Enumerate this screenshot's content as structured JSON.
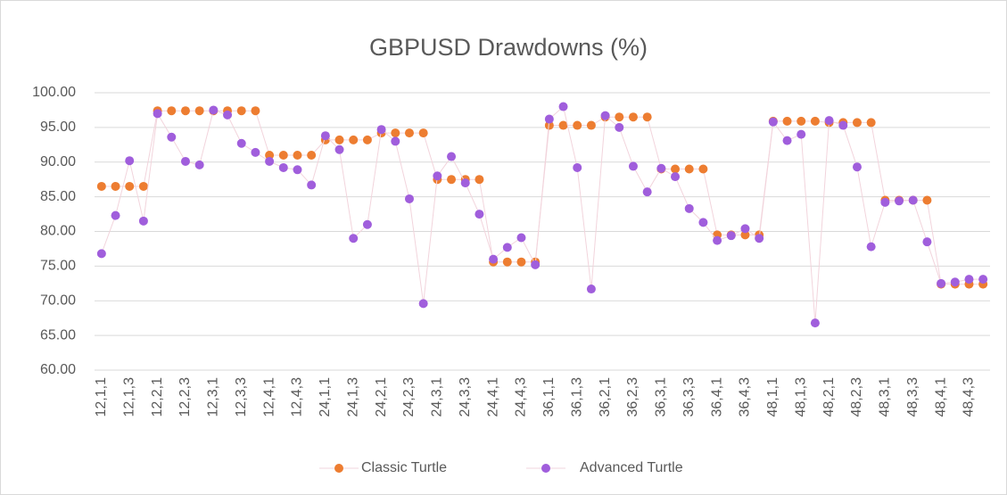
{
  "chart_data": {
    "type": "scatter",
    "title": "GBPUSD Drawdowns (%)",
    "categories": [
      "12,1,1",
      null,
      "12,1,3",
      null,
      "12,2,1",
      null,
      "12,2,3",
      null,
      "12,3,1",
      null,
      "12,3,3",
      null,
      "12,4,1",
      null,
      "12,4,3",
      null,
      "24,1,1",
      null,
      "24,1,3",
      null,
      "24,2,1",
      null,
      "24,2,3",
      null,
      "24,3,1",
      null,
      "24,3,3",
      null,
      "24,4,1",
      null,
      "24,4,3",
      null,
      "36,1,1",
      null,
      "36,1,3",
      null,
      "36,2,1",
      null,
      "36,2,3",
      null,
      "36,3,1",
      null,
      "36,3,3",
      null,
      "36,4,1",
      null,
      "36,4,3",
      null,
      "48,1,1",
      null,
      "48,1,3",
      null,
      "48,2,1",
      null,
      "48,2,3",
      null,
      "48,3,1",
      null,
      "48,3,3",
      null,
      "48,4,1",
      null,
      "48,4,3",
      null
    ],
    "series": [
      {
        "name": "Classic Turtle",
        "color": "#ED7D31",
        "values": [
          86.5,
          86.5,
          86.5,
          86.5,
          97.4,
          97.4,
          97.4,
          97.4,
          97.4,
          97.4,
          97.4,
          97.4,
          91.0,
          91.0,
          91.0,
          91.0,
          93.2,
          93.2,
          93.2,
          93.2,
          94.2,
          94.2,
          94.2,
          94.2,
          87.5,
          87.5,
          87.5,
          87.5,
          75.6,
          75.6,
          75.6,
          75.6,
          95.3,
          95.3,
          95.3,
          95.3,
          96.5,
          96.5,
          96.5,
          96.5,
          89.0,
          89.0,
          89.0,
          89.0,
          79.5,
          79.5,
          79.5,
          79.5,
          95.9,
          95.9,
          95.9,
          95.9,
          95.7,
          95.7,
          95.7,
          95.7,
          84.5,
          84.5,
          84.5,
          84.5,
          72.4,
          72.4,
          72.4,
          72.4
        ]
      },
      {
        "name": "Advanced Turtle",
        "color": "#A05EDC",
        "values": [
          76.8,
          82.3,
          90.2,
          81.5,
          97.0,
          93.6,
          90.1,
          89.6,
          97.5,
          96.8,
          92.7,
          91.4,
          90.1,
          89.2,
          88.9,
          86.7,
          93.8,
          91.8,
          79.0,
          81.0,
          94.7,
          93.0,
          84.7,
          69.6,
          88.0,
          90.8,
          87.0,
          82.5,
          76.0,
          77.7,
          79.1,
          75.2,
          96.2,
          98.0,
          89.2,
          71.7,
          96.7,
          95.0,
          89.4,
          85.7,
          89.1,
          87.9,
          83.3,
          81.3,
          78.7,
          79.4,
          80.4,
          79.0,
          95.8,
          93.1,
          94.0,
          66.8,
          96.0,
          95.3,
          89.3,
          77.8,
          84.2,
          84.4,
          84.5,
          78.5,
          72.5,
          72.7,
          73.1,
          73.1
        ]
      }
    ],
    "ylim": [
      60,
      100
    ],
    "yticks": [
      {
        "value": 60,
        "label": "60.00"
      },
      {
        "value": 65,
        "label": "65.00"
      },
      {
        "value": 70,
        "label": "70.00"
      },
      {
        "value": 75,
        "label": "75.00"
      },
      {
        "value": 80,
        "label": "80.00"
      },
      {
        "value": 85,
        "label": "85.00"
      },
      {
        "value": 90,
        "label": "90.00"
      },
      {
        "value": 95,
        "label": "95.00"
      },
      {
        "value": 100,
        "label": "100.00"
      }
    ],
    "grid": true,
    "legend": "bottom"
  }
}
